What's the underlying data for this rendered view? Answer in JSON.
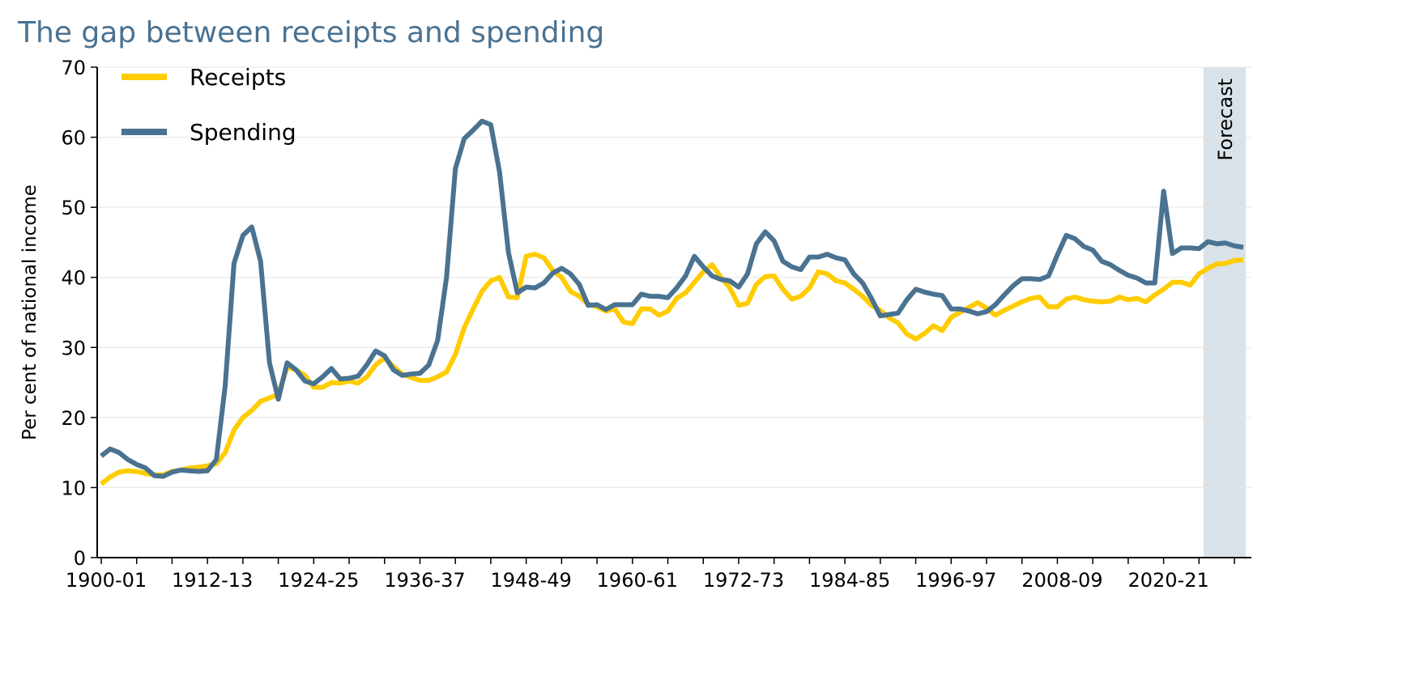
{
  "chart_data": {
    "type": "line",
    "title": "The gap between receipts and spending",
    "ylabel": "Per cent of national income",
    "xlabel": "",
    "ylim": [
      0,
      70
    ],
    "yticks": [
      0,
      10,
      20,
      30,
      40,
      50,
      60,
      70
    ],
    "x_tick_labels": [
      "1900-01",
      "1912-13",
      "1924-25",
      "1936-37",
      "1948-49",
      "1960-61",
      "1972-73",
      "1984-85",
      "1996-97",
      "2008-09",
      "2020-21"
    ],
    "x_first_year": 1900,
    "grid": "horizontal",
    "legend_placement": "top-left",
    "forecast": {
      "label": "Forecast",
      "start": "2024-25",
      "color": "#DAE2E9"
    },
    "series": [
      {
        "name": "Receipts",
        "color": "#FFCC00",
        "values": [
          10.5,
          11.5,
          12.2,
          12.4,
          12.3,
          12.0,
          11.8,
          11.8,
          12.3,
          12.5,
          12.8,
          12.9,
          13.1,
          13.4,
          15,
          18.2,
          20,
          21,
          22.3,
          22.8,
          23.3,
          27.2,
          26.8,
          26,
          24.3,
          24.3,
          25,
          24.9,
          25.2,
          24.9,
          25.8,
          27.5,
          28.5,
          27.3,
          26.2,
          25.7,
          25.3,
          25.3,
          25.8,
          26.5,
          29,
          32.8,
          35.5,
          38,
          39.5,
          40,
          37.2,
          37.1,
          43,
          43.3,
          42.8,
          41,
          40,
          38,
          37.3,
          36.2,
          35.8,
          35.2,
          35.5,
          33.6,
          33.4,
          35.5,
          35.5,
          34.6,
          35.2,
          37,
          37.8,
          39.3,
          40.8,
          41.8,
          40,
          38.5,
          36,
          36.3,
          39,
          40.1,
          40.2,
          38.3,
          36.9,
          37.3,
          38.5,
          40.8,
          40.5,
          39.5,
          39.2,
          38.3,
          37.3,
          36,
          35.3,
          34.2,
          33.5,
          31.9,
          31.2,
          32,
          33.1,
          32.4,
          34.3,
          35,
          35.7,
          36.4,
          35.6,
          34.6,
          35.3,
          35.9,
          36.5,
          37,
          37.2,
          35.8,
          35.8,
          36.9,
          37.2,
          36.8,
          36.6,
          36.5,
          36.6,
          37.2,
          36.8,
          37,
          36.5,
          37.5,
          38.3,
          39.3,
          39.3,
          38.9,
          40.5,
          41.3,
          41.9,
          42,
          42.4,
          42.5
        ]
      },
      {
        "name": "Spending",
        "color": "#4A7291",
        "values": [
          14.5,
          15.5,
          15.0,
          14.0,
          13.3,
          12.8,
          11.7,
          11.6,
          12.2,
          12.5,
          12.4,
          12.3,
          12.4,
          14.0,
          24.5,
          42,
          46,
          47.2,
          42.3,
          27.8,
          22.6,
          27.8,
          26.8,
          25.2,
          24.8,
          25.8,
          27.0,
          25.5,
          25.6,
          25.9,
          27.5,
          29.5,
          28.8,
          26.8,
          26.0,
          26.2,
          26.3,
          27.5,
          31,
          40,
          55.5,
          59.8,
          61,
          62.3,
          61.8,
          55,
          43.5,
          37.8,
          38.6,
          38.5,
          39.2,
          40.6,
          41.3,
          40.5,
          39,
          36,
          36.1,
          35.4,
          36.1,
          36.1,
          36.1,
          37.6,
          37.3,
          37.3,
          37.1,
          38.5,
          40.2,
          43,
          41.5,
          40.2,
          39.7,
          39.5,
          38.6,
          40.5,
          44.8,
          46.5,
          45.2,
          42.3,
          41.5,
          41.1,
          42.9,
          42.9,
          43.3,
          42.8,
          42.5,
          40.5,
          39.2,
          37,
          34.5,
          34.7,
          34.9,
          36.8,
          38.3,
          37.9,
          37.6,
          37.4,
          35.5,
          35.5,
          35.2,
          34.8,
          35.1,
          36.1,
          37.5,
          38.8,
          39.8,
          39.8,
          39.7,
          40.2,
          43.2,
          46,
          45.5,
          44.4,
          43.9,
          42.3,
          41.8,
          41,
          40.3,
          39.9,
          39.2,
          39.2,
          52.3,
          43.4,
          44.2,
          44.2,
          44.1,
          45.1,
          44.8,
          44.9,
          44.5,
          44.3
        ]
      }
    ]
  }
}
